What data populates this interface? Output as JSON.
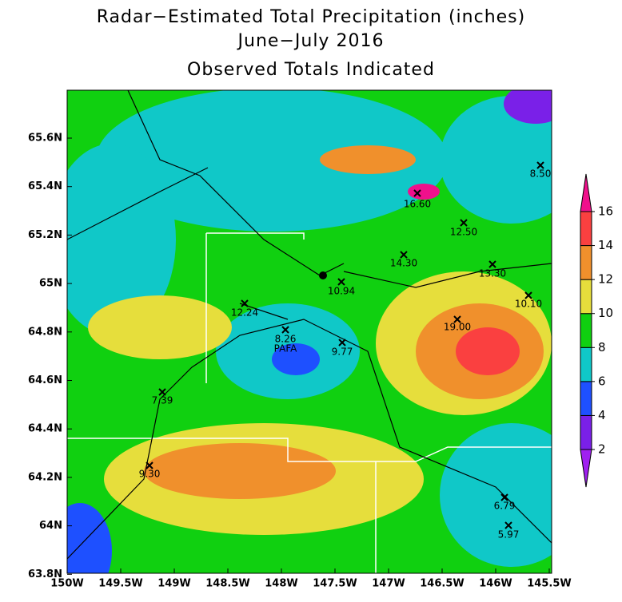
{
  "title": [
    "Radar−Estimated Total Precipitation (inches)",
    "June−July 2016",
    "Observed Totals Indicated"
  ],
  "x_axis": {
    "labels": [
      "150W",
      "149.5W",
      "149W",
      "148.5W",
      "148W",
      "147.5W",
      "147W",
      "146.5W",
      "146W",
      "145.5W"
    ]
  },
  "y_axis": {
    "labels": [
      "65.6N",
      "65.4N",
      "65.2N",
      "65N",
      "64.8N",
      "64.6N",
      "64.4N",
      "64.2N",
      "64N",
      "63.8N"
    ]
  },
  "stations": [
    "8.50",
    "16.60",
    "12.50",
    "14.30",
    "13.30",
    "10.94",
    "10.10",
    "12.24",
    "19.00",
    "8.26",
    "9.77",
    "7.39",
    "9.30",
    "6.79",
    "5.97"
  ],
  "site_label": "PAFA",
  "colorbar": {
    "ticks": [
      2,
      4,
      6,
      8,
      10,
      12,
      14,
      16
    ],
    "colors": [
      "#a020f0",
      "#7a20e8",
      "#1e50ff",
      "#10c8c8",
      "#10d010",
      "#e6de3c",
      "#f0902c",
      "#fa4040",
      "#f0108c"
    ]
  }
}
